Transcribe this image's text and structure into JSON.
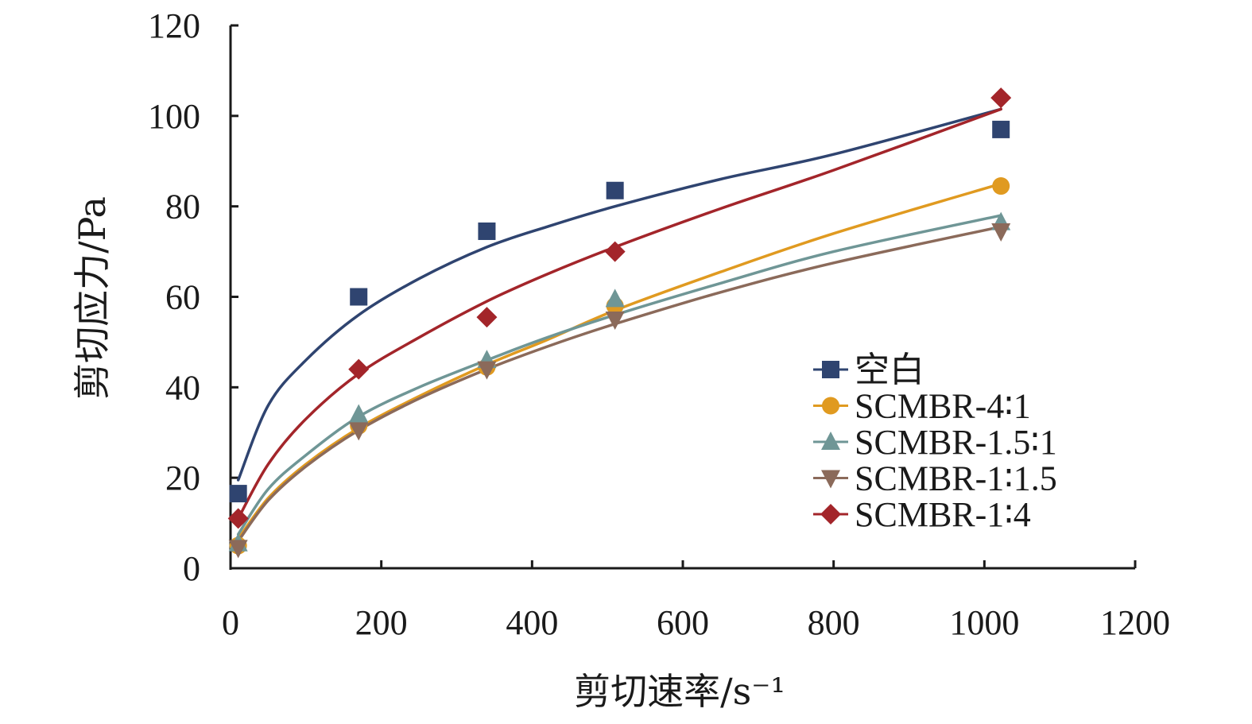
{
  "chart_data": {
    "type": "scatter",
    "title": "",
    "xlabel": "剪切速率/s⁻¹",
    "ylabel": "剪切应力/Pa",
    "xlim": [
      0,
      1200
    ],
    "ylim": [
      0,
      120
    ],
    "xticks": [
      "0",
      "200",
      "400",
      "600",
      "800",
      "1000",
      "1200"
    ],
    "yticks": [
      "0",
      "20",
      "40",
      "60",
      "80",
      "100",
      "120"
    ],
    "grid": false,
    "legend_position": "bottom-right",
    "x": [
      10.2,
      170,
      340,
      510,
      1022
    ],
    "series": [
      {
        "name": "空白",
        "marker": "square",
        "color": "#2f4470",
        "values": [
          16.5,
          60,
          74.5,
          83.5,
          97
        ],
        "fit": [
          [
            10.2,
            19.5
          ],
          [
            50,
            36
          ],
          [
            100,
            46
          ],
          [
            170,
            56
          ],
          [
            250,
            64
          ],
          [
            340,
            71
          ],
          [
            420,
            75.5
          ],
          [
            510,
            80
          ],
          [
            650,
            86
          ],
          [
            800,
            91.5
          ],
          [
            1022,
            101.5
          ]
        ]
      },
      {
        "name": "SCMBR-4∶1",
        "marker": "circle",
        "color": "#e09a20",
        "values": [
          5,
          31.5,
          44.5,
          58,
          84.5
        ],
        "fit": [
          [
            10.2,
            6.5
          ],
          [
            50,
            15.5
          ],
          [
            100,
            23
          ],
          [
            170,
            31
          ],
          [
            250,
            38
          ],
          [
            340,
            45
          ],
          [
            420,
            50.5
          ],
          [
            510,
            57
          ],
          [
            650,
            65.5
          ],
          [
            800,
            74
          ],
          [
            1022,
            85
          ]
        ]
      },
      {
        "name": "SCMBR-1.5∶1",
        "marker": "triangle-up",
        "color": "#6f9696",
        "values": [
          5.5,
          34,
          46,
          59.5,
          76.5
        ],
        "fit": [
          [
            10.2,
            7.5
          ],
          [
            50,
            17.5
          ],
          [
            100,
            25
          ],
          [
            170,
            33.5
          ],
          [
            250,
            40
          ],
          [
            340,
            46
          ],
          [
            420,
            51
          ],
          [
            510,
            56
          ],
          [
            650,
            63
          ],
          [
            800,
            70
          ],
          [
            1022,
            78
          ]
        ]
      },
      {
        "name": "SCMBR-1∶1.5",
        "marker": "triangle-down",
        "color": "#8b6a5a",
        "values": [
          4.5,
          30.5,
          44,
          55,
          74.5
        ],
        "fit": [
          [
            10.2,
            6
          ],
          [
            50,
            15
          ],
          [
            100,
            22.5
          ],
          [
            170,
            30.5
          ],
          [
            250,
            37.5
          ],
          [
            340,
            44
          ],
          [
            420,
            49
          ],
          [
            510,
            54
          ],
          [
            650,
            61
          ],
          [
            800,
            67.5
          ],
          [
            1022,
            75.5
          ]
        ]
      },
      {
        "name": "SCMBR-1∶4",
        "marker": "diamond",
        "color": "#a3252a",
        "values": [
          11,
          44,
          55.5,
          70,
          104
        ],
        "fit": [
          [
            10.2,
            11
          ],
          [
            50,
            23
          ],
          [
            100,
            33
          ],
          [
            170,
            43
          ],
          [
            250,
            51
          ],
          [
            340,
            59
          ],
          [
            420,
            65
          ],
          [
            510,
            71
          ],
          [
            650,
            79.5
          ],
          [
            800,
            88
          ],
          [
            1022,
            101.5
          ]
        ]
      }
    ]
  }
}
